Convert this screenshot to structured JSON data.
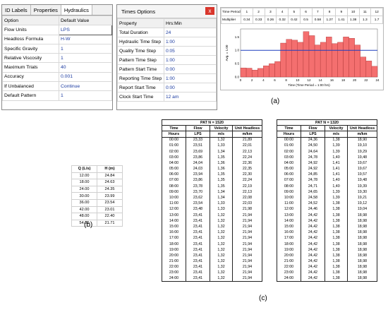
{
  "panel_a": {
    "properties": {
      "tabs": [
        "ID Labels",
        "Properties",
        "Hydraulics"
      ],
      "selected_tab": "Hydraulics",
      "headers": {
        "option": "Option",
        "value": "Default Value"
      },
      "rows": [
        {
          "option": "Flow Units",
          "value": "LPS"
        },
        {
          "option": "Headloss Formula",
          "value": "H-W"
        },
        {
          "option": "Specific Gravity",
          "value": "1"
        },
        {
          "option": "Relative Viscosity",
          "value": "1"
        },
        {
          "option": "Maximum Trials",
          "value": "40"
        },
        {
          "option": "Accuracy",
          "value": "0.001"
        },
        {
          "option": "If Unbalanced",
          "value": "Continue"
        },
        {
          "option": "Default Pattern",
          "value": "1"
        }
      ]
    },
    "times_options": {
      "title": "Times Options",
      "close_glyph": "x",
      "headers": {
        "property": "Property",
        "value": "Hrs:Min"
      },
      "rows": [
        {
          "property": "Total Duration",
          "value": "24"
        },
        {
          "property": "Hydraulic Time Step",
          "value": "1:00"
        },
        {
          "property": "Quality Time Step",
          "value": "0:05"
        },
        {
          "property": "Pattern Time Step",
          "value": "1:00"
        },
        {
          "property": "Pattern Start Time",
          "value": "0:00"
        },
        {
          "property": "Reporting Time Step",
          "value": "1:00"
        },
        {
          "property": "Report Start Time",
          "value": "0:00"
        },
        {
          "property": "Clock Start Time",
          "value": "12 am"
        }
      ]
    },
    "pattern": {
      "time_period_label": "Time Period",
      "periods": [
        "1",
        "2",
        "3",
        "4",
        "5",
        "6",
        "7",
        "8",
        "9",
        "10",
        "11",
        "12"
      ],
      "multiplier_label": "Multiplier",
      "multipliers": [
        "0.34",
        "0.33",
        "0.26",
        "0.32",
        "0.42",
        "0.5",
        "0.58",
        "1.27",
        "1.41",
        "1.38",
        "1.3",
        "1.7"
      ],
      "y_label": "Avg. = 1.00",
      "x_label": "Time (Time Period = 1:00 hrs)",
      "x_ticks": [
        "0",
        "2",
        "4",
        "6",
        "8",
        "10",
        "12",
        "14",
        "16",
        "18",
        "20",
        "22",
        "24"
      ],
      "y_ticks": [
        "0.0",
        "0.5",
        "1.0",
        "1.5"
      ],
      "bar_color": "#f46f6f",
      "avg_line_color": "#1f3fbf"
    },
    "label": "(a)"
  },
  "chart_data": {
    "type": "bar",
    "title": "",
    "xlabel": "Time (Time Period = 1:00 hrs)",
    "ylabel": "Avg. = 1.00",
    "x": [
      0,
      1,
      2,
      3,
      4,
      5,
      6,
      7,
      8,
      9,
      10,
      11,
      12,
      13,
      14,
      15,
      16,
      17,
      18,
      19,
      20,
      21,
      22,
      23
    ],
    "values": [
      0.34,
      0.33,
      0.26,
      0.32,
      0.42,
      0.5,
      0.58,
      1.27,
      1.41,
      1.38,
      1.3,
      1.7,
      1.55,
      1.2,
      1.3,
      1.5,
      1.25,
      1.3,
      1.5,
      1.45,
      1.2,
      0.75,
      0.6,
      0.4
    ],
    "average": 1.0,
    "xlim": [
      0,
      24
    ],
    "ylim": [
      0,
      1.8
    ]
  },
  "panel_b": {
    "headers": [
      "Q (L/s)",
      "H (m)"
    ],
    "rows": [
      [
        "12.00",
        "24.84"
      ],
      [
        "18.00",
        "24.63"
      ],
      [
        "24.00",
        "24.35"
      ],
      [
        "30.00",
        "23.99"
      ],
      [
        "36.00",
        "23.54"
      ],
      [
        "42.00",
        "23.01"
      ],
      [
        "48.00",
        "22.40"
      ],
      [
        "54.00",
        "21.71"
      ]
    ],
    "label": "(b)"
  },
  "panel_c": {
    "label": "(c)",
    "tables": [
      {
        "title": "PAT  N = 1520",
        "headers": [
          "Time",
          "Flow",
          "Velocity",
          "Unit Headloss"
        ],
        "units": [
          "Hours",
          "LPS",
          "m/s",
          "m/km"
        ],
        "rows": [
          [
            "00:00",
            "23,33",
            "1,32",
            "21,89"
          ],
          [
            "01:00",
            "23,51",
            "1,33",
            "22,01"
          ],
          [
            "02:00",
            "23,69",
            "1,34",
            "22,13"
          ],
          [
            "03:00",
            "23,86",
            "1,35",
            "22,24"
          ],
          [
            "04:00",
            "24,04",
            "1,36",
            "22,36"
          ],
          [
            "05:00",
            "24,03",
            "1,36",
            "22,35"
          ],
          [
            "06:00",
            "23,94",
            "1,35",
            "22,30"
          ],
          [
            "07:00",
            "23,86",
            "1,35",
            "22,24"
          ],
          [
            "08:00",
            "23,78",
            "1,35",
            "22,19"
          ],
          [
            "09:00",
            "23,70",
            "1,34",
            "22,13"
          ],
          [
            "10:00",
            "23,62",
            "1,34",
            "22,08"
          ],
          [
            "11:00",
            "23,54",
            "1,33",
            "22,03"
          ],
          [
            "12:00",
            "23,48",
            "1,33",
            "21,98"
          ],
          [
            "13:00",
            "23,41",
            "1,32",
            "21,94"
          ],
          [
            "14:00",
            "23,41",
            "1,32",
            "21,94"
          ],
          [
            "15:00",
            "23,41",
            "1,32",
            "21,94"
          ],
          [
            "16:00",
            "23,41",
            "1,32",
            "21,94"
          ],
          [
            "17:00",
            "23,41",
            "1,32",
            "21,94"
          ],
          [
            "18:00",
            "23,41",
            "1,32",
            "21,94"
          ],
          [
            "19:00",
            "23,41",
            "1,32",
            "21,94"
          ],
          [
            "20:00",
            "23,41",
            "1,32",
            "21,94"
          ],
          [
            "21:00",
            "23,41",
            "1,32",
            "21,94"
          ],
          [
            "22:00",
            "23,41",
            "1,32",
            "21,94"
          ],
          [
            "23:00",
            "23,41",
            "1,32",
            "21,94"
          ],
          [
            "24:00",
            "23,41",
            "1,32",
            "21,94"
          ]
        ]
      },
      {
        "title": "PAT  N = 1320",
        "headers": [
          "Time",
          "Flow",
          "Velocity",
          "Unit Headloss"
        ],
        "units": [
          "Hours",
          "LPS",
          "m/s",
          "m/km"
        ],
        "rows": [
          [
            "00:00",
            "24,36",
            "1,38",
            "18,90"
          ],
          [
            "01:00",
            "24,50",
            "1,39",
            "19,10"
          ],
          [
            "02:00",
            "24,64",
            "1,39",
            "19,29"
          ],
          [
            "03:00",
            "24,78",
            "1,40",
            "19,48"
          ],
          [
            "04:00",
            "24,92",
            "1,41",
            "19,67"
          ],
          [
            "05:00",
            "24,92",
            "1,41",
            "19,67"
          ],
          [
            "06:00",
            "24,85",
            "1,41",
            "19,57"
          ],
          [
            "07:00",
            "24,78",
            "1,40",
            "19,48"
          ],
          [
            "08:00",
            "24,71",
            "1,40",
            "19,39"
          ],
          [
            "09:00",
            "24,65",
            "1,39",
            "19,30"
          ],
          [
            "10:00",
            "24,58",
            "1,39",
            "19,21"
          ],
          [
            "11:00",
            "24,52",
            "1,38",
            "19,12"
          ],
          [
            "12:00",
            "24,46",
            "1,38",
            "19,04"
          ],
          [
            "13:00",
            "24,42",
            "1,38",
            "18,98"
          ],
          [
            "14:00",
            "24,42",
            "1,38",
            "18,98"
          ],
          [
            "15:00",
            "24,42",
            "1,38",
            "18,98"
          ],
          [
            "16:00",
            "24,42",
            "1,38",
            "18,98"
          ],
          [
            "17:00",
            "24,42",
            "1,38",
            "18,98"
          ],
          [
            "18:00",
            "24,42",
            "1,38",
            "18,98"
          ],
          [
            "19:00",
            "24,42",
            "1,38",
            "18,98"
          ],
          [
            "20:00",
            "24,42",
            "1,38",
            "18,98"
          ],
          [
            "21:00",
            "24,42",
            "1,38",
            "18,98"
          ],
          [
            "22:00",
            "24,42",
            "1,38",
            "18,98"
          ],
          [
            "23:00",
            "24,42",
            "1,38",
            "18,98"
          ],
          [
            "24:00",
            "24,42",
            "1,38",
            "18,98"
          ]
        ]
      }
    ]
  }
}
